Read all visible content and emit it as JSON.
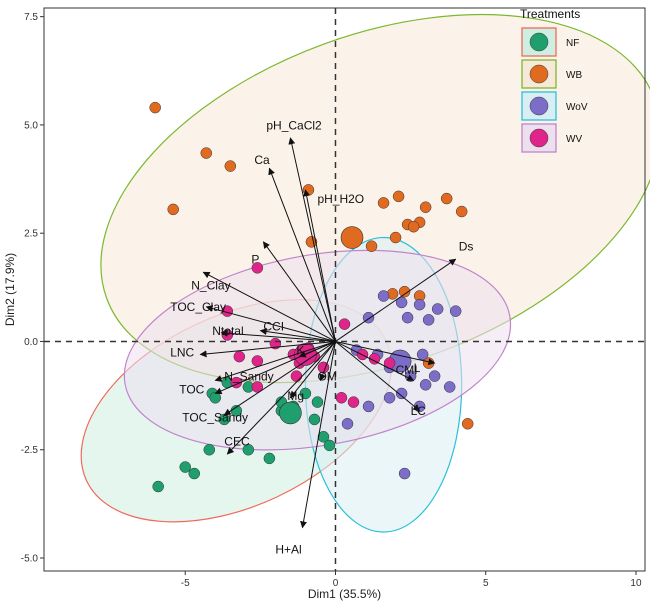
{
  "chart_data": {
    "type": "scatter",
    "subtype": "pca-biplot",
    "xlabel": "Dim1 (35.5%)",
    "ylabel": "Dim2 (17.9%)",
    "xlim": [
      -9.7,
      10.3
    ],
    "ylim": [
      -5.3,
      7.7
    ],
    "x_ticks": [
      -5,
      0,
      5,
      10
    ],
    "x_tick_labels": [
      "-5",
      "0",
      "5",
      "10"
    ],
    "y_ticks": [
      -5,
      -2.5,
      0,
      2.5,
      5,
      7.5
    ],
    "y_tick_labels": [
      "-5.0",
      "-2.5",
      "0.0",
      "2.5",
      "5.0",
      "7.5"
    ],
    "reference_lines": {
      "x": 0,
      "y": 0,
      "style": "dashed"
    },
    "grid": false,
    "legend": {
      "title": "Treatments",
      "placement": "top-right",
      "entries": [
        "NF",
        "WB",
        "WoV",
        "WV"
      ]
    },
    "series": [
      {
        "name": "NF",
        "color": "#1f9e6e",
        "ellipse_stroke": "#f06a5a",
        "ellipse_fill": "#cfeee2",
        "ellipse": {
          "cx": -3.3,
          "cy": -1.6,
          "rx": 5.5,
          "ry": 2.2,
          "angle_deg": 25
        },
        "centroid": [
          -1.5,
          -1.65
        ],
        "points": [
          [
            -5.9,
            -3.35
          ],
          [
            -5,
            -2.9
          ],
          [
            -4.7,
            -3.05
          ],
          [
            -4.2,
            -2.5
          ],
          [
            -4.1,
            -1.2
          ],
          [
            -4,
            -1.3
          ],
          [
            -3.7,
            -1.8
          ],
          [
            -3.3,
            -1.6
          ],
          [
            -2.9,
            -2.5
          ],
          [
            -2.2,
            -2.7
          ],
          [
            -1.8,
            -1.6
          ],
          [
            -1.4,
            -1.5
          ],
          [
            -1,
            -1.2
          ],
          [
            -0.6,
            -1.4
          ],
          [
            -0.7,
            -1.8
          ],
          [
            -0.4,
            -0.6
          ],
          [
            -0.4,
            -2.2
          ],
          [
            -1.8,
            -1.4
          ],
          [
            -2.9,
            -1.05
          ],
          [
            -3.6,
            -0.95
          ],
          [
            -0.2,
            -2.4
          ]
        ]
      },
      {
        "name": "WB",
        "color": "#e06a20",
        "ellipse_stroke": "#7cb82f",
        "ellipse_fill": "#f7e9d9",
        "ellipse": {
          "cx": 1.5,
          "cy": 3.3,
          "rx": 9.7,
          "ry": 3.8,
          "angle_deg": 20
        },
        "centroid": [
          0.55,
          2.4
        ],
        "points": [
          [
            -6,
            5.4
          ],
          [
            -4.3,
            4.35
          ],
          [
            -3.5,
            4.05
          ],
          [
            -5.4,
            3.05
          ],
          [
            -0.8,
            2.3
          ],
          [
            -0.9,
            3.5
          ],
          [
            1.6,
            3.2
          ],
          [
            2.1,
            3.35
          ],
          [
            3,
            3.1
          ],
          [
            3.7,
            3.3
          ],
          [
            4.2,
            3
          ],
          [
            2.4,
            2.7
          ],
          [
            2.8,
            2.75
          ],
          [
            2,
            2.4
          ],
          [
            2.6,
            2.65
          ],
          [
            2.3,
            1.15
          ],
          [
            1.9,
            1.1
          ],
          [
            1.2,
            2.2
          ],
          [
            2.8,
            1.05
          ],
          [
            3.1,
            -0.5
          ],
          [
            4.4,
            -1.9
          ]
        ]
      },
      {
        "name": "WoV",
        "color": "#7b6dc8",
        "ellipse_stroke": "#2cc0d8",
        "ellipse_fill": "#d8eef3",
        "ellipse": {
          "cx": 1.6,
          "cy": -1.0,
          "rx": 2.6,
          "ry": 3.4,
          "angle_deg": 0
        },
        "centroid": [
          2.15,
          -0.45
        ],
        "points": [
          [
            1.6,
            1.05
          ],
          [
            2.2,
            0.9
          ],
          [
            2.8,
            0.85
          ],
          [
            3.4,
            0.75
          ],
          [
            4,
            0.7
          ],
          [
            3.1,
            0.5
          ],
          [
            2.4,
            0.55
          ],
          [
            1.1,
            0.55
          ],
          [
            0.7,
            -0.2
          ],
          [
            1.4,
            -0.3
          ],
          [
            1.8,
            -0.6
          ],
          [
            2.5,
            -0.8
          ],
          [
            3,
            -1
          ],
          [
            3.3,
            -0.8
          ],
          [
            3.8,
            -1.05
          ],
          [
            2.8,
            -1.5
          ],
          [
            2.2,
            -1.2
          ],
          [
            1.8,
            -1.3
          ],
          [
            1.1,
            -1.5
          ],
          [
            0.4,
            -1.9
          ],
          [
            2.3,
            -3.05
          ],
          [
            2.9,
            -0.3
          ]
        ]
      },
      {
        "name": "WV",
        "color": "#e0258a",
        "ellipse_stroke": "#c183cc",
        "ellipse_fill": "#ece0ee",
        "ellipse": {
          "cx": -0.6,
          "cy": -0.2,
          "rx": 6.5,
          "ry": 2.2,
          "angle_deg": 10
        },
        "centroid": [
          -1.0,
          -0.3
        ],
        "points": [
          [
            -2.6,
            1.7
          ],
          [
            -3.6,
            0.7
          ],
          [
            -3.6,
            0.15
          ],
          [
            -3.2,
            -0.35
          ],
          [
            -2.6,
            -0.45
          ],
          [
            -2,
            -0.05
          ],
          [
            -1.4,
            -0.3
          ],
          [
            -1.2,
            -0.5
          ],
          [
            -0.9,
            -0.15
          ],
          [
            -0.7,
            -0.35
          ],
          [
            -0.4,
            -0.6
          ],
          [
            0.3,
            0.4
          ],
          [
            0.9,
            -0.3
          ],
          [
            1.3,
            -0.4
          ],
          [
            1.8,
            -0.5
          ],
          [
            0.6,
            -1.4
          ],
          [
            0.2,
            -1.3
          ],
          [
            -1.3,
            -0.8
          ],
          [
            -2.6,
            -1.05
          ],
          [
            -3.3,
            -0.95
          ]
        ]
      }
    ],
    "variables": [
      {
        "name": "pH_CaCl2",
        "x": -1.5,
        "y": 4.7,
        "label_x": -2.3,
        "label_y": 4.9
      },
      {
        "name": "Ca",
        "x": -2.2,
        "y": 4.0,
        "label_x": -2.7,
        "label_y": 4.1
      },
      {
        "name": "pH_H2O",
        "x": -1.0,
        "y": 3.5,
        "label_x": -0.6,
        "label_y": 3.2
      },
      {
        "name": "P",
        "x": -2.4,
        "y": 2.3,
        "label_x": -2.8,
        "label_y": 1.8
      },
      {
        "name": "Ds",
        "x": 4.0,
        "y": 1.9,
        "label_x": 4.1,
        "label_y": 2.1
      },
      {
        "name": "N_Clay",
        "x": -4.4,
        "y": 1.6,
        "label_x": -4.8,
        "label_y": 1.2
      },
      {
        "name": "TOC_Clay",
        "x": -4.3,
        "y": 0.8,
        "label_x": -5.5,
        "label_y": 0.7
      },
      {
        "name": "Ntotal",
        "x": -3.8,
        "y": 0.2,
        "label_x": -4.1,
        "label_y": 0.15
      },
      {
        "name": "CCI",
        "x": -2.5,
        "y": 0.25,
        "label_x": -2.4,
        "label_y": 0.25
      },
      {
        "name": "LNC",
        "x": -4.5,
        "y": -0.3,
        "label_x": -5.5,
        "label_y": -0.35
      },
      {
        "name": "K",
        "x": -1.2,
        "y": -0.35,
        "label_x": -1.3,
        "label_y": -0.3
      },
      {
        "name": "N_Sandy",
        "x": -4.0,
        "y": -0.9,
        "label_x": -3.7,
        "label_y": -0.9
      },
      {
        "name": "CMI",
        "x": 2.6,
        "y": -0.9,
        "label_x": 2.0,
        "label_y": -0.75
      },
      {
        "name": "OM",
        "x": -0.5,
        "y": -0.9,
        "label_x": -0.6,
        "label_y": -0.9
      },
      {
        "name": "L",
        "x": 3.3,
        "y": -0.5,
        "label_x": 2.6,
        "label_y": -0.7
      },
      {
        "name": "TOC",
        "x": -4.0,
        "y": -1.2,
        "label_x": -5.2,
        "label_y": -1.2
      },
      {
        "name": "Mg",
        "x": -1.5,
        "y": -1.3,
        "label_x": -1.6,
        "label_y": -1.35
      },
      {
        "name": "LC",
        "x": 2.8,
        "y": -1.6,
        "label_x": 2.5,
        "label_y": -1.7
      },
      {
        "name": "TOC_Sandy",
        "x": -3.7,
        "y": -1.7,
        "label_x": -5.1,
        "label_y": -1.85
      },
      {
        "name": "CEC",
        "x": -3.6,
        "y": -2.6,
        "label_x": -3.7,
        "label_y": -2.4
      },
      {
        "name": "H+Al",
        "x": -1.1,
        "y": -4.3,
        "label_x": -2.0,
        "label_y": -4.9
      }
    ]
  }
}
